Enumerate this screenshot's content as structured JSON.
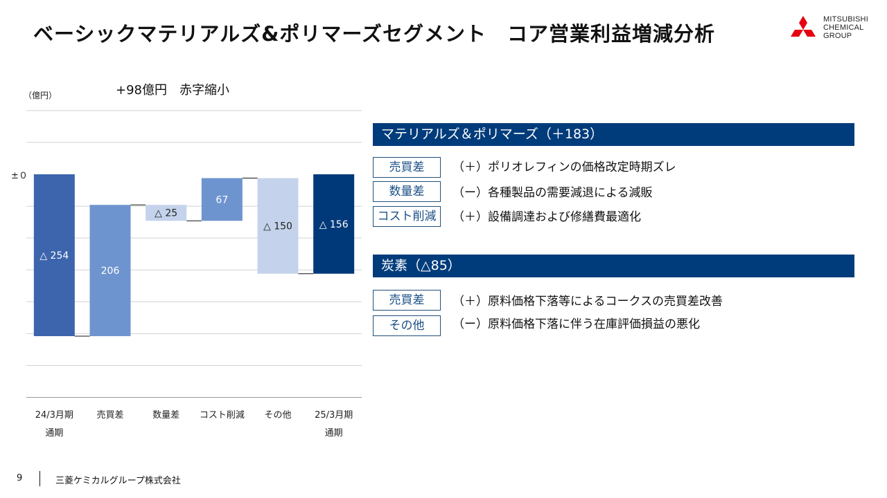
{
  "title": "ベーシックマテリアルズ&ポリマーズセグメント　コア営業利益増減分析",
  "logo": {
    "line1": "MITSUBISHI",
    "line2": "CHEMICAL",
    "line3": "GROUP",
    "color": "#e60012"
  },
  "chart_data": {
    "type": "waterfall",
    "unit_label": "（億円）",
    "headline": "+98億円　赤字縮小",
    "zero_label": "±０",
    "categories": [
      {
        "name": "24/3月期",
        "name2": "通期",
        "start": 0,
        "end": -254,
        "label": "△ 254",
        "color": "#3d65ad",
        "text_color": "#ffffff"
      },
      {
        "name": "売買差",
        "name2": "",
        "start": -254,
        "end": -48,
        "label": "206",
        "color": "#6e94cf",
        "text_color": "#ffffff"
      },
      {
        "name": "数量差",
        "name2": "",
        "start": -48,
        "end": -73,
        "label": "△ 25",
        "color": "#c4d3eb",
        "text_color": "#222222"
      },
      {
        "name": "コスト削減",
        "name2": "",
        "start": -73,
        "end": -6,
        "label": "67",
        "color": "#6e94cf",
        "text_color": "#ffffff"
      },
      {
        "name": "その他",
        "name2": "",
        "start": -6,
        "end": -156,
        "label": "△ 150",
        "color": "#c4d3eb",
        "text_color": "#222222"
      },
      {
        "name": "25/3月期",
        "name2": "通期",
        "start": 0,
        "end": -156,
        "label": "△ 156",
        "color": "#00397a",
        "text_color": "#ffffff"
      }
    ],
    "y_range": [
      -350,
      100
    ],
    "grid": true
  },
  "sections": [
    {
      "header": "マテリアルズ＆ポリマーズ（＋183）",
      "items": [
        {
          "tag": "売買差",
          "text": "（＋）ポリオレフィンの価格改定時期ズレ"
        },
        {
          "tag": "数量差",
          "text": "（ー）各種製品の需要減退による減販"
        },
        {
          "tag": "コスト削減",
          "text": "（＋）設備調達および修繕費最適化"
        }
      ]
    },
    {
      "header": "炭素（△85）",
      "items": [
        {
          "tag": "売買差",
          "text": "（＋）原料価格下落等によるコークスの売買差改善"
        },
        {
          "tag": "その他",
          "text": "（ー）原料価格下落に伴う在庫評価損益の悪化"
        }
      ]
    }
  ],
  "footer": {
    "page": "9",
    "company": "三菱ケミカルグループ株式会社"
  }
}
